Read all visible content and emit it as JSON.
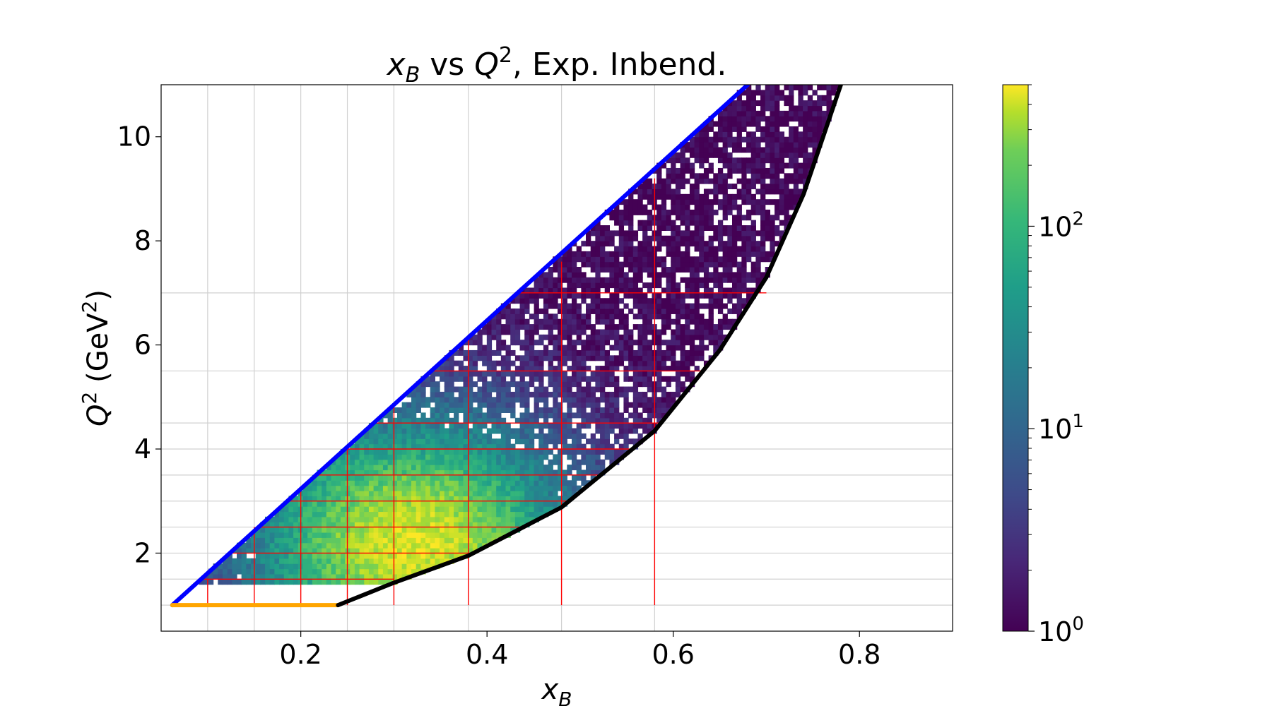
{
  "chart_data": {
    "type": "heatmap",
    "title": {
      "var": "x",
      "var_sub": "B",
      "mid": " vs ",
      "var2": "Q",
      "var2_sup": "2",
      "rest": ", Exp. Inbend."
    },
    "xlabel": {
      "var": "x",
      "var_sub": "B"
    },
    "ylabel": {
      "var": "Q",
      "var_sup": "2",
      "unit_pre": " (GeV",
      "unit_sup": "2",
      "unit_post": ")"
    },
    "xlim": [
      0.05,
      0.9
    ],
    "ylim": [
      0.5,
      11.0
    ],
    "x_ticks": [
      0.2,
      0.4,
      0.6,
      0.8
    ],
    "x_tick_labels": [
      "0.2",
      "0.4",
      "0.6",
      "0.8"
    ],
    "y_ticks": [
      2,
      4,
      6,
      8,
      10
    ],
    "y_tick_labels": [
      "2",
      "4",
      "6",
      "8",
      "10"
    ],
    "x_grid": [
      0.1,
      0.15,
      0.2,
      0.25,
      0.3,
      0.38,
      0.48,
      0.58
    ],
    "y_grid": [
      1.0,
      1.5,
      2.0,
      2.5,
      3.0,
      3.5,
      4.0,
      4.5,
      5.5,
      7.0
    ],
    "grid": true,
    "colorbar": {
      "scale": "log",
      "range": [
        1,
        500
      ],
      "tick_labels": [
        {
          "base": "10",
          "exp": "0",
          "value": 1
        },
        {
          "base": "10",
          "exp": "1",
          "value": 10
        },
        {
          "base": "10",
          "exp": "2",
          "value": 100
        }
      ],
      "colormap": "viridis"
    },
    "boundaries": [
      {
        "color": "#0000ff",
        "from": [
          0.062,
          1.0
        ],
        "to": [
          0.68,
          11.0
        ]
      },
      {
        "color": "#ffa500",
        "from": [
          0.062,
          1.0
        ],
        "to": [
          0.24,
          1.0
        ]
      },
      {
        "color": "#000000",
        "shape": "curve",
        "points": [
          [
            0.24,
            1.0
          ],
          [
            0.3,
            1.43
          ],
          [
            0.38,
            1.95
          ],
          [
            0.48,
            2.88
          ],
          [
            0.58,
            4.35
          ],
          [
            0.65,
            5.9
          ],
          [
            0.7,
            7.3
          ],
          [
            0.74,
            8.9
          ],
          [
            0.78,
            11.0
          ]
        ]
      }
    ],
    "bin_grid_color": "#ff0000",
    "bin_grid": [
      {
        "x": 0.1,
        "q_top": 1.5
      },
      {
        "x": 0.15,
        "q_top": 2.5
      },
      {
        "x": 0.2,
        "q_top": 3.2
      },
      {
        "x": 0.25,
        "q_top": 4.0
      },
      {
        "x": 0.3,
        "q_top": 4.8
      },
      {
        "x": 0.38,
        "q_top": 6.1
      },
      {
        "x": 0.48,
        "q_top": 7.6
      },
      {
        "x": 0.58,
        "q_top": 9.2
      }
    ],
    "bin_rows": [
      1.5,
      2.0,
      2.5,
      3.0,
      3.5,
      4.0,
      4.5,
      5.5,
      7.0
    ],
    "density_peak": {
      "x": 0.32,
      "q2": 2.2
    }
  }
}
